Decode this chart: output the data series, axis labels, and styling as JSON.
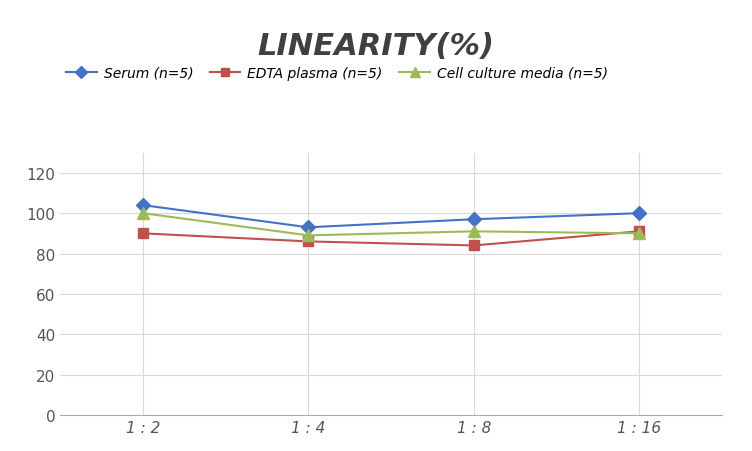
{
  "title": "LINEARITY(%)",
  "x_labels": [
    "1 : 2",
    "1 : 4",
    "1 : 8",
    "1 : 16"
  ],
  "x_positions": [
    0,
    1,
    2,
    3
  ],
  "series": [
    {
      "label": "Serum (n=5)",
      "values": [
        104,
        93,
        97,
        100
      ],
      "color": "#4472C4",
      "marker": "D",
      "markersize": 7
    },
    {
      "label": "EDTA plasma (n=5)",
      "values": [
        90,
        86,
        84,
        91
      ],
      "color": "#C0504D",
      "marker": "s",
      "markersize": 7
    },
    {
      "label": "Cell culture media (n=5)",
      "values": [
        100,
        89,
        91,
        90
      ],
      "color": "#9BBB59",
      "marker": "^",
      "markersize": 8
    }
  ],
  "ylim": [
    0,
    130
  ],
  "yticks": [
    0,
    20,
    40,
    60,
    80,
    100,
    120
  ],
  "background_color": "#FFFFFF",
  "grid_color": "#D9D9D9",
  "title_fontsize": 22,
  "legend_fontsize": 10,
  "tick_fontsize": 11
}
